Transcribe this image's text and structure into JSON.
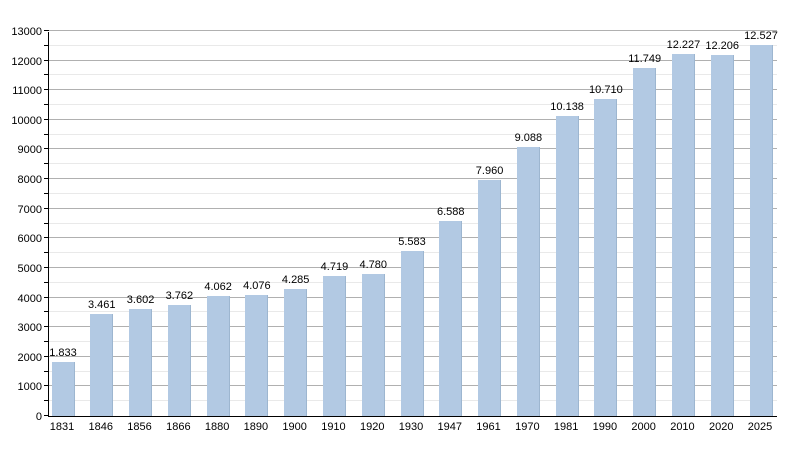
{
  "chart_data": {
    "type": "bar",
    "title": "",
    "xlabel": "",
    "ylabel": "",
    "categories": [
      "1831",
      "1846",
      "1856",
      "1866",
      "1880",
      "1890",
      "1900",
      "1910",
      "1920",
      "1930",
      "1947",
      "1961",
      "1970",
      "1981",
      "1990",
      "2000",
      "2010",
      "2020",
      "2025"
    ],
    "values": [
      1833,
      3461,
      3602,
      3762,
      4062,
      4076,
      4285,
      4719,
      4780,
      5583,
      6588,
      7960,
      9088,
      10138,
      10710,
      11749,
      12227,
      12206,
      12527
    ],
    "value_labels": [
      "1.833",
      "3.461",
      "3.602",
      "3.762",
      "4.062",
      "4.076",
      "4.285",
      "4.719",
      "4.780",
      "5.583",
      "6.588",
      "7.960",
      "9.088",
      "10.138",
      "10.710",
      "11.749",
      "12.227",
      "12.206",
      "12.527"
    ],
    "ylim": [
      0,
      13000
    ],
    "y_major_step": 1000,
    "y_minor_step": 500,
    "y_tick_labels": [
      "0",
      "1000",
      "2000",
      "3000",
      "4000",
      "5000",
      "6000",
      "7000",
      "8000",
      "9000",
      "10000",
      "11000",
      "12000",
      "13000"
    ],
    "grid": true,
    "legend": "none",
    "bar_color": "#b2c9e3",
    "bar_edge_color": "#9db6d0",
    "major_grid_color": "#b0b0b0",
    "minor_grid_color": "#e9e9e9",
    "axis_color": "#000000",
    "text_color": "#000000"
  }
}
